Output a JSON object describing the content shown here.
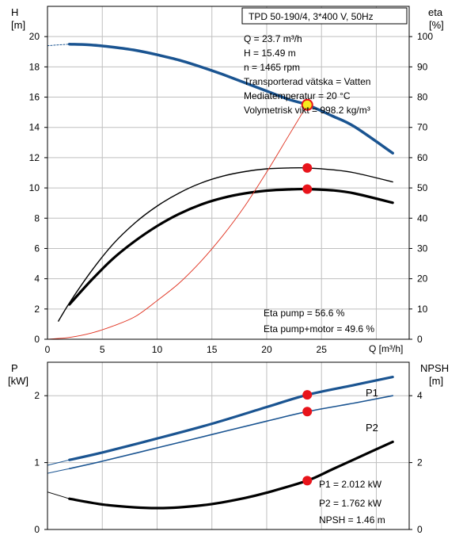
{
  "colors": {
    "head_curve": "#1a5491",
    "efficiency_curve": "#000000",
    "npsh_curve": "#000000",
    "system_curve": "#e0301e",
    "marker": "#e8141b",
    "duty_point_fill": "#f5ea1e",
    "grid": "#bfbfbf"
  },
  "chart_data": [
    {
      "type": "line",
      "panel": "head-efficiency",
      "title": "TPD 50-190/4, 3*400 V, 50Hz",
      "xlabel": "Q [m³/h]",
      "ylabel_left_name": "H",
      "ylabel_left_unit": "[m]",
      "ylabel_right_name": "eta",
      "ylabel_right_unit": "[%]",
      "xlim": [
        0,
        33
      ],
      "ylim_left": [
        0,
        22
      ],
      "ylim_right": [
        0,
        110
      ],
      "x_ticks": [
        0,
        5,
        10,
        15,
        20,
        25
      ],
      "y_ticks_left": [
        0,
        2,
        4,
        6,
        8,
        10,
        12,
        14,
        16,
        18,
        20
      ],
      "y_ticks_right": [
        0,
        10,
        20,
        30,
        40,
        50,
        60,
        70,
        80,
        90,
        100
      ],
      "grid": true,
      "info_lines": [
        "Q = 23.7 m³/h",
        "H = 15.49 m",
        "n = 1465 rpm",
        "Transporterad vätska = Vatten",
        "Mediatemperatur = 20 °C",
        "Volymetrisk vikt = 998.2 kg/m³"
      ],
      "eta_lines": [
        "Eta pump = 56.6 %",
        "Eta pump+motor = 49.6 %"
      ],
      "series": [
        {
          "axis": "left",
          "style": "head-dashed",
          "x": [
            0,
            2
          ],
          "y": [
            19.4,
            19.5
          ]
        },
        {
          "axis": "left",
          "style": "head",
          "x": [
            2,
            4,
            6,
            8,
            10,
            12,
            14,
            16,
            18,
            20,
            22,
            23.7,
            26,
            28,
            31.5
          ],
          "y": [
            19.5,
            19.45,
            19.3,
            19.1,
            18.8,
            18.45,
            18.0,
            17.5,
            16.95,
            16.4,
            15.85,
            15.49,
            14.75,
            14.05,
            12.3
          ]
        },
        {
          "axis": "right",
          "style": "eta-pump",
          "x": [
            1,
            2,
            4,
            6,
            8,
            10,
            12,
            14,
            16,
            18,
            20,
            22,
            23.7,
            26,
            28,
            31.5
          ],
          "y": [
            6,
            12,
            22.5,
            31.5,
            38.5,
            44,
            48.3,
            51.6,
            53.9,
            55.4,
            56.3,
            56.6,
            56.6,
            56.0,
            55.0,
            52.0
          ]
        },
        {
          "axis": "right",
          "style": "eta-pump-motor",
          "x": [
            2,
            4,
            6,
            8,
            10,
            12,
            14,
            16,
            18,
            20,
            22,
            23.7,
            26,
            28,
            31.5
          ],
          "y": [
            11.5,
            19.5,
            26.7,
            32.5,
            37.4,
            41.4,
            44.5,
            46.7,
            48.2,
            49.1,
            49.5,
            49.6,
            49.2,
            48.2,
            45.1
          ]
        },
        {
          "axis": "left",
          "style": "system",
          "x": [
            0,
            2,
            4,
            6,
            8,
            10,
            12,
            14,
            16,
            18,
            20,
            22,
            23.7
          ],
          "y": [
            0,
            0.12,
            0.41,
            0.88,
            1.5,
            2.55,
            3.7,
            5.15,
            6.85,
            8.8,
            11.05,
            13.45,
            15.49
          ]
        }
      ],
      "markers": [
        {
          "axis": "left",
          "x": 23.7,
          "y": 15.49,
          "kind": "duty"
        },
        {
          "axis": "right",
          "x": 23.7,
          "y": 56.6,
          "kind": "dot"
        },
        {
          "axis": "right",
          "x": 23.7,
          "y": 49.6,
          "kind": "dot"
        }
      ]
    },
    {
      "type": "line",
      "panel": "power-npsh",
      "ylabel_left_name": "P",
      "ylabel_left_unit": "[kW]",
      "ylabel_right_name": "NPSH",
      "ylabel_right_unit": "[m]",
      "xlim": [
        0,
        33
      ],
      "ylim_left": [
        0,
        2.5
      ],
      "ylim_right": [
        0,
        5
      ],
      "y_ticks_left": [
        0,
        1,
        2
      ],
      "y_ticks_right": [
        0,
        2,
        4
      ],
      "grid": true,
      "series_labels": [
        "P1",
        "P2"
      ],
      "info_lines": [
        "P1 = 2.012 kW",
        "P2 = 1.762 kW",
        "NPSH = 1.46 m"
      ],
      "series": [
        {
          "axis": "left",
          "style": "p1-dashed",
          "x": [
            0,
            2
          ],
          "y": [
            0.96,
            1.04
          ]
        },
        {
          "axis": "left",
          "style": "p1",
          "name": "P1",
          "x": [
            2,
            5,
            10,
            15,
            20,
            23.7,
            28,
            31.5
          ],
          "y": [
            1.04,
            1.15,
            1.36,
            1.58,
            1.83,
            2.012,
            2.16,
            2.28
          ]
        },
        {
          "axis": "left",
          "style": "p2-dashed",
          "x": [
            0,
            2
          ],
          "y": [
            0.84,
            0.91
          ]
        },
        {
          "axis": "left",
          "style": "p2",
          "name": "P2",
          "x": [
            2,
            5,
            10,
            15,
            20,
            23.7,
            28,
            31.5
          ],
          "y": [
            0.91,
            1.02,
            1.22,
            1.42,
            1.62,
            1.762,
            1.89,
            2.0
          ]
        },
        {
          "axis": "right",
          "style": "npsh-dashed",
          "x": [
            0,
            2
          ],
          "y": [
            1.12,
            0.92
          ]
        },
        {
          "axis": "right",
          "style": "npsh",
          "x": [
            2,
            5,
            8,
            10,
            12,
            15,
            18,
            20,
            23.7,
            26,
            28,
            31.5
          ],
          "y": [
            0.92,
            0.75,
            0.66,
            0.64,
            0.66,
            0.76,
            0.94,
            1.1,
            1.46,
            1.8,
            2.1,
            2.62
          ]
        }
      ],
      "markers": [
        {
          "axis": "left",
          "x": 23.7,
          "y": 2.012,
          "kind": "dot"
        },
        {
          "axis": "left",
          "x": 23.7,
          "y": 1.762,
          "kind": "dot"
        },
        {
          "axis": "right",
          "x": 23.7,
          "y": 1.46,
          "kind": "dot"
        }
      ]
    }
  ]
}
